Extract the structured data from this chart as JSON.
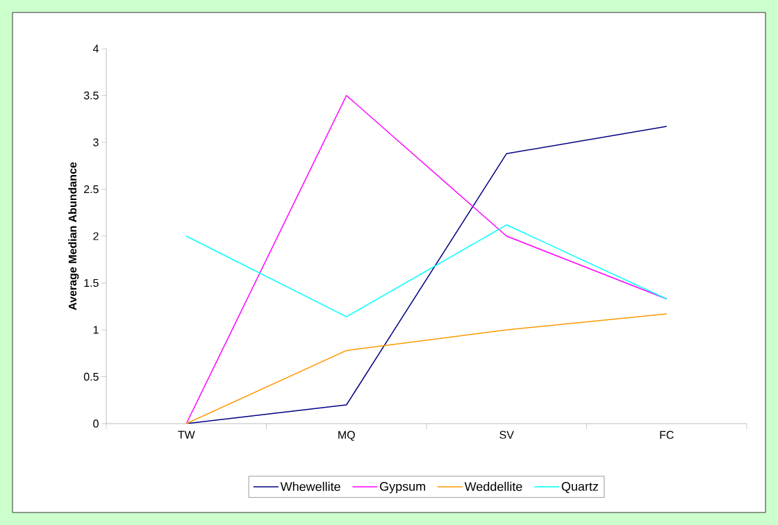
{
  "chart_data": {
    "type": "line",
    "ylabel": "Average Median Abundance",
    "categories": [
      "TW",
      "MQ",
      "SV",
      "FC"
    ],
    "series": [
      {
        "name": "Whewellite",
        "color": "#000080",
        "values": [
          0,
          0.2,
          2.88,
          3.17
        ]
      },
      {
        "name": "Gypsum",
        "color": "#ff00ff",
        "values": [
          0,
          3.5,
          2.0,
          1.33
        ]
      },
      {
        "name": "Weddellite",
        "color": "#ff9900",
        "values": [
          0,
          0.78,
          1.0,
          1.17
        ]
      },
      {
        "name": "Quartz",
        "color": "#00ffff",
        "values": [
          2.0,
          1.14,
          2.12,
          1.33
        ]
      }
    ],
    "ylim": [
      0,
      4
    ],
    "yticks": [
      0,
      0.5,
      1,
      1.5,
      2,
      2.5,
      3,
      3.5,
      4
    ],
    "legend": "bottom"
  }
}
